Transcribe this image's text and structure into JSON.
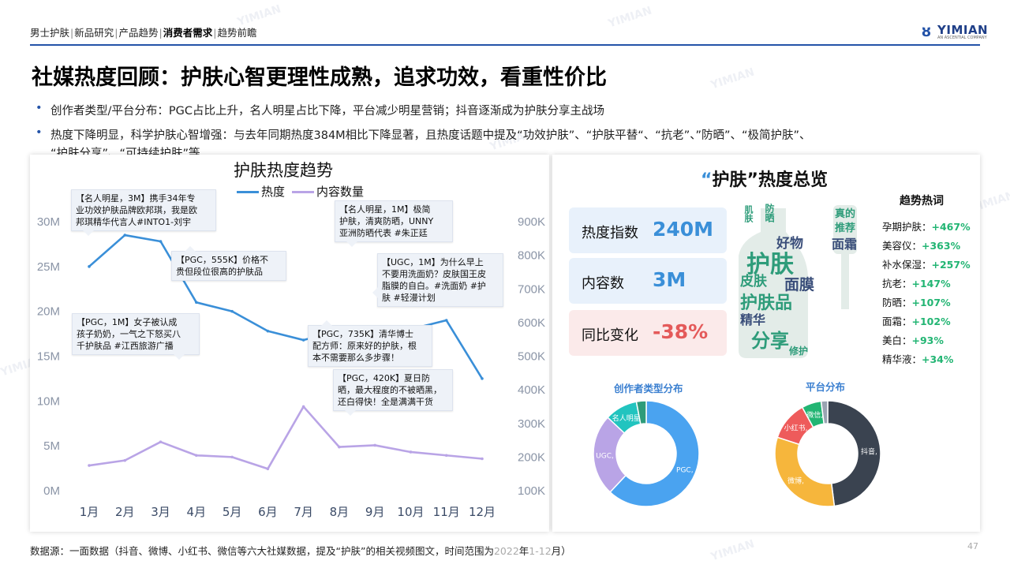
{
  "breadcrumb": {
    "items": [
      "男士护肤",
      "新品研究",
      "产品趋势",
      "消费者需求",
      "趋势前瞻"
    ],
    "active_index": 3
  },
  "logo": {
    "name": "YIMIAN",
    "sub": "AN ASCENTIAL COMPANY"
  },
  "page_title": "社媒热度回顾：护肤心智更理性成熟，追求功效，看重性价比",
  "bullets": [
    {
      "line1": "创作者类型/平台分布：PGC占比上升，名人明星占比下降，平台减少明星营销；抖音逐渐成为护肤分享主战场"
    },
    {
      "line1": "热度下降明显，科学护肤心智增强：与去年同期热度384M相比下降显著，且热度话题中提及“功效护肤”、“护肤平替“、“抗老”、”防晒”、“极简护肤”、",
      "line2": "“护肤分享”、“可持续护肤”等"
    }
  ],
  "watermark": "YIMIAN",
  "chart_data": {
    "type": "line",
    "title": "护肤热度趋势",
    "categories": [
      "1月",
      "2月",
      "3月",
      "4月",
      "5月",
      "6月",
      "7月",
      "8月",
      "9月",
      "10月",
      "11月",
      "12月"
    ],
    "series": [
      {
        "name": "热度",
        "axis": "left",
        "color": "#3a8fd8",
        "values": [
          25,
          28.5,
          27.8,
          21,
          20,
          17.8,
          16.8,
          17.8,
          17.8,
          18,
          19,
          12.5
        ]
      },
      {
        "name": "内容数量",
        "axis": "right",
        "color": "#b9a4e6",
        "values": [
          175,
          190,
          245,
          205,
          200,
          165,
          350,
          230,
          235,
          215,
          205,
          195
        ]
      }
    ],
    "y_left": {
      "ticks": [
        "0M",
        "5M",
        "10M",
        "15M",
        "20M",
        "25M",
        "30M"
      ],
      "range": [
        0,
        30
      ]
    },
    "y_right": {
      "ticks": [
        "100K",
        "200K",
        "300K",
        "400K",
        "500K",
        "600K",
        "700K",
        "800K",
        "900K"
      ],
      "range": [
        100,
        900
      ]
    },
    "legend": "top",
    "grid": false
  },
  "annotations": {
    "a1": [
      "【名人明星，3M】携手34年专",
      "业功效护肤品牌欧邦琪，我是欧",
      "邦琪精华代言人#INTO1-刘宇"
    ],
    "a2": [
      "【PGC，555K】价格不",
      "贵但段位很高的护肤品"
    ],
    "a3": [
      "【PGC，1M】女子被认成",
      "孩子奶奶，一气之下怒买八",
      "千护肤品 #江西旅游广播"
    ],
    "a4": [
      "【名人明星，1M】极简",
      "护肤，清爽防晒，UNNY",
      "亚洲防晒代表 #朱正廷"
    ],
    "a5": [
      "【UGC，1M】为什么早上",
      "不要用洗面奶？皮肤国王皮",
      "脂膜的自白。#洗面奶 #护",
      "肤 #轻漫计划"
    ],
    "a6": [
      "【PGC，735K】清华博士",
      "配方师：原来好的护肤，根",
      "本不需要那么多步骤！"
    ],
    "a7": [
      "【PGC，420K】夏日防",
      "晒，最大程度的不被晒黑，",
      "还白得快！全是满满干货"
    ]
  },
  "overview": {
    "title_quote_open": "“",
    "title_word": "护肤",
    "title_quote_close": "”",
    "title_rest": "热度总览",
    "stats": [
      {
        "label": "热度指数",
        "value": "240M",
        "color": "#3a8fd8"
      },
      {
        "label": "内容数",
        "value": "3M",
        "color": "#3a8fd8"
      },
      {
        "label": "同比变化",
        "value": "-38%",
        "color": "#e45a5a"
      }
    ],
    "hot_title": "趋势热词",
    "hot_words": [
      {
        "word": "孕期护肤：",
        "pct": "+467%"
      },
      {
        "word": "美容仪：",
        "pct": "+363%"
      },
      {
        "word": "补水保湿：",
        "pct": "+257%"
      },
      {
        "word": "抗老：",
        "pct": "+147%"
      },
      {
        "word": "防晒：",
        "pct": "+107%"
      },
      {
        "word": "面霜：",
        "pct": "+102%"
      },
      {
        "word": "美白：",
        "pct": "+93%"
      },
      {
        "word": "精华液：",
        "pct": "+34%"
      }
    ],
    "word_cloud": [
      "护肤",
      "护肤品",
      "分享",
      "面膜",
      "皮肤",
      "好物",
      "精华",
      "肌肤",
      "防晒",
      "修护",
      "真的",
      "推荐",
      "面霜"
    ]
  },
  "donut_creator": {
    "title": "创作者类型分布",
    "segments": [
      {
        "label": "PGC,",
        "value": 0.62,
        "color": "#4aa3f0"
      },
      {
        "label": "UGC,",
        "value": 0.25,
        "color": "#b9a4e6"
      },
      {
        "label": "名人明星",
        "value": 0.1,
        "color": "#22c4bf"
      },
      {
        "label": "",
        "value": 0.03,
        "color": "#2e9c7a"
      }
    ]
  },
  "donut_platform": {
    "title": "平台分布",
    "segments": [
      {
        "label": "抖音,",
        "value": 0.48,
        "color": "#3a4350"
      },
      {
        "label": "微博,",
        "value": 0.32,
        "color": "#f6b63c"
      },
      {
        "label": "小红书,",
        "value": 0.12,
        "color": "#ee5b5b"
      },
      {
        "label": "微信,",
        "value": 0.06,
        "color": "#22b573"
      },
      {
        "label": "",
        "value": 0.02,
        "color": "#9aa4b2"
      }
    ]
  },
  "source": {
    "prefix": "数据源：一面数据（抖音、微博、小红书、微信等六大社媒数据，提及“护肤”的相关视频图文，时间范围为",
    "year": "2022",
    "mid": "年",
    "range": "1-12",
    "suffix": "月）"
  },
  "page_number": "47"
}
